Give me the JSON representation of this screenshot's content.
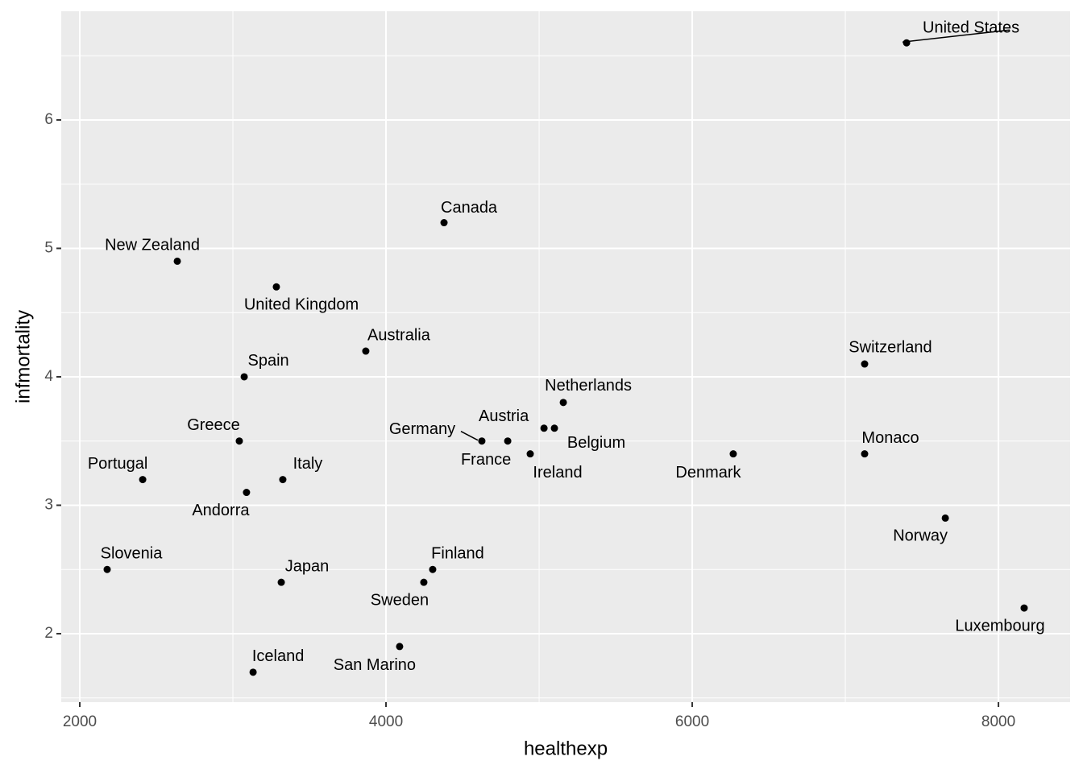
{
  "chart_data": {
    "type": "scatter",
    "xlabel": "healthexp",
    "ylabel": "infmortality",
    "labels": [
      "United States",
      "Canada",
      "New Zealand",
      "United Kingdom",
      "Australia",
      "Spain",
      "Switzerland",
      "Netherlands",
      "Austria",
      "Belgium",
      "Germany",
      "France",
      "Ireland",
      "Denmark",
      "Monaco",
      "Greece",
      "Portugal",
      "Italy",
      "Andorra",
      "Norway",
      "Slovenia",
      "Japan",
      "Finland",
      "Sweden",
      "Luxembourg",
      "Iceland",
      "San Marino"
    ],
    "x": [
      7400,
      4379,
      2637,
      3284,
      3868,
      3074,
      7126,
      5158,
      5032,
      5100,
      4626,
      4795,
      4942,
      6268,
      7126,
      3042,
      2411,
      3326,
      3089,
      7653,
      2179,
      3316,
      4305,
      4247,
      8168,
      3132,
      4089
    ],
    "values": [
      6.6,
      5.2,
      4.9,
      4.7,
      4.2,
      4.0,
      4.1,
      3.8,
      3.6,
      3.6,
      3.5,
      3.5,
      3.4,
      3.4,
      3.4,
      3.5,
      3.2,
      3.2,
      3.1,
      2.9,
      2.5,
      2.4,
      2.5,
      2.4,
      2.2,
      1.7,
      1.9
    ],
    "color": "#000000",
    "xlim": [
      1879,
      8468
    ],
    "ylim": [
      1.467,
      6.846
    ],
    "xticks": [
      2000,
      4000,
      6000,
      8000
    ],
    "yticks": [
      2,
      3,
      4,
      5,
      6
    ],
    "grid": true
  }
}
